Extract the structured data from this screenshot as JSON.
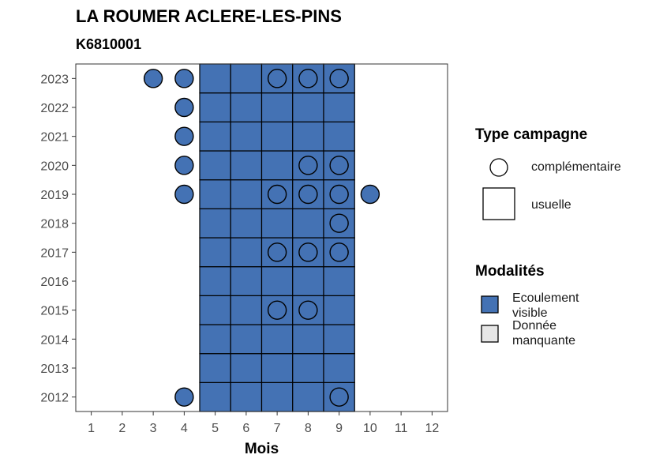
{
  "title": "LA ROUMER ACLERE-LES-PINS",
  "subtitle": "K6810001",
  "legend": {
    "type_title": "Type campagne",
    "type_items": [
      {
        "label": "complémentaire",
        "shape": "circle"
      },
      {
        "label": "usuelle",
        "shape": "square"
      }
    ],
    "mod_title": "Modalités",
    "mod_items": [
      {
        "label_line1": "Ecoulement",
        "label_line2": "visible",
        "color": "#4472b4"
      },
      {
        "label_line1": "Donnée",
        "label_line2": "manquante",
        "color": "#e6e6e6"
      }
    ]
  },
  "chart_data": {
    "type": "heatmap",
    "xlabel": "Mois",
    "ylabel": "",
    "x_ticks": [
      1,
      2,
      3,
      4,
      5,
      6,
      7,
      8,
      9,
      10,
      11,
      12
    ],
    "y_ticks": [
      2012,
      2013,
      2014,
      2015,
      2016,
      2017,
      2018,
      2019,
      2020,
      2021,
      2022,
      2023
    ],
    "xlim": [
      0.5,
      12.5
    ],
    "ylim": [
      2011.5,
      2023.5
    ],
    "colors": {
      "ecoulement_visible": "#4472b4",
      "donnee_manquante": "#e6e6e6"
    },
    "usuelle_campaigns": {
      "months": [
        5,
        6,
        7,
        8,
        9
      ],
      "years": [
        2012,
        2013,
        2014,
        2015,
        2016,
        2017,
        2018,
        2019,
        2020,
        2021,
        2022,
        2023
      ],
      "modalite": "Ecoulement visible"
    },
    "complementaire_campaigns": [
      {
        "year": 2023,
        "month": 3,
        "modalite": "Ecoulement visible"
      },
      {
        "year": 2023,
        "month": 4,
        "modalite": "Ecoulement visible"
      },
      {
        "year": 2023,
        "month": 7,
        "modalite": "Ecoulement visible"
      },
      {
        "year": 2023,
        "month": 8,
        "modalite": "Ecoulement visible"
      },
      {
        "year": 2023,
        "month": 9,
        "modalite": "Ecoulement visible"
      },
      {
        "year": 2022,
        "month": 4,
        "modalite": "Ecoulement visible"
      },
      {
        "year": 2021,
        "month": 4,
        "modalite": "Ecoulement visible"
      },
      {
        "year": 2020,
        "month": 4,
        "modalite": "Ecoulement visible"
      },
      {
        "year": 2020,
        "month": 8,
        "modalite": "Ecoulement visible"
      },
      {
        "year": 2020,
        "month": 9,
        "modalite": "Ecoulement visible"
      },
      {
        "year": 2019,
        "month": 4,
        "modalite": "Ecoulement visible"
      },
      {
        "year": 2019,
        "month": 7,
        "modalite": "Ecoulement visible"
      },
      {
        "year": 2019,
        "month": 8,
        "modalite": "Ecoulement visible"
      },
      {
        "year": 2019,
        "month": 9,
        "modalite": "Ecoulement visible"
      },
      {
        "year": 2019,
        "month": 10,
        "modalite": "Ecoulement visible"
      },
      {
        "year": 2018,
        "month": 9,
        "modalite": "Ecoulement visible"
      },
      {
        "year": 2017,
        "month": 7,
        "modalite": "Ecoulement visible"
      },
      {
        "year": 2017,
        "month": 8,
        "modalite": "Ecoulement visible"
      },
      {
        "year": 2017,
        "month": 9,
        "modalite": "Ecoulement visible"
      },
      {
        "year": 2015,
        "month": 7,
        "modalite": "Ecoulement visible"
      },
      {
        "year": 2015,
        "month": 8,
        "modalite": "Ecoulement visible"
      },
      {
        "year": 2012,
        "month": 4,
        "modalite": "Ecoulement visible"
      },
      {
        "year": 2012,
        "month": 9,
        "modalite": "Ecoulement visible"
      }
    ]
  }
}
